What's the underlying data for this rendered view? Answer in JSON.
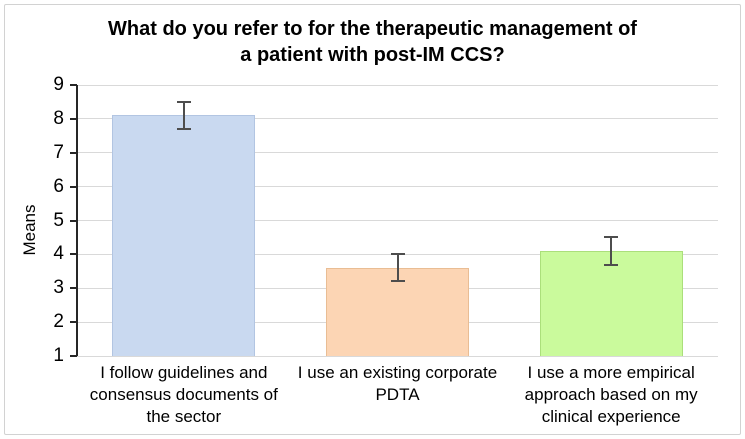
{
  "chart_data": {
    "type": "bar",
    "title": "What do you refer to for the therapeutic management of a patient with post-IM CCS?",
    "title_lines": [
      "What do you refer to for the therapeutic management of",
      "a patient with post-IM CCS?"
    ],
    "xlabel": "",
    "ylabel": "Means",
    "categories": [
      "I follow guidelines and consensus documents of the sector",
      "I use an existing corporate PDTA",
      "I use a more empirical approach based on my clinical experience"
    ],
    "values": [
      8.1,
      3.6,
      4.1
    ],
    "errors": [
      0.4,
      0.4,
      0.4
    ],
    "ylim": [
      1,
      9
    ],
    "ytick_step": 1,
    "yticks": [
      1,
      2,
      3,
      4,
      5,
      6,
      7,
      8,
      9
    ],
    "grid": true,
    "legend": false,
    "bar_colors": [
      "#c9d9f0",
      "#fcd5b4",
      "#cafa9c"
    ],
    "bar_border_colors": [
      "#b2c5e2",
      "#e9bd94",
      "#abdf7b"
    ],
    "error_bar_color": "#4d4d4d",
    "gridline_color": "#d9d9d9",
    "axis_color": "#262626",
    "frame_border_color": "#d2d2d2"
  }
}
